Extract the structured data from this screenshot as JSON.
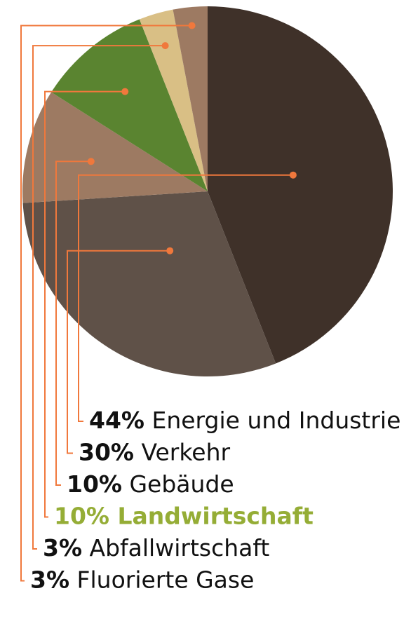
{
  "chart_data": {
    "type": "pie",
    "title": "",
    "unit": "%",
    "slices": [
      {
        "label": "Energie und Industrie",
        "value": 44,
        "value_label": "44%",
        "color": "#3f3129",
        "label_color": "#111111"
      },
      {
        "label": "Verkehr",
        "value": 30,
        "value_label": "30%",
        "color": "#5f5148",
        "label_color": "#111111"
      },
      {
        "label": "Gebäude",
        "value": 10,
        "value_label": "10%",
        "color": "#9d7a62",
        "label_color": "#111111"
      },
      {
        "label": "Landwirtschaft",
        "value": 10,
        "value_label": "10%",
        "color": "#5a8430",
        "label_color": "#95ad36",
        "highlight": true
      },
      {
        "label": "Abfallwirtschaft",
        "value": 3,
        "value_label": "3%",
        "color": "#d9bf85",
        "label_color": "#111111"
      },
      {
        "label": "Fluorierte Gase",
        "value": 3,
        "value_label": "3%",
        "color": "#9d7a62",
        "label_color": "#111111"
      }
    ],
    "leader_color": "#f0783c",
    "legend_placement": "bottom-left"
  }
}
